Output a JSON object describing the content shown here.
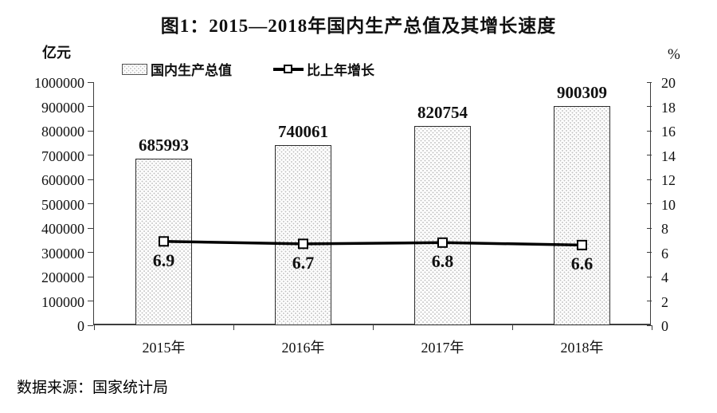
{
  "title": "图1：2015—2018年国内生产总值及其增长速度",
  "left_axis_unit": "亿元",
  "right_axis_unit": "%",
  "legend": [
    {
      "label": "国内生产总值",
      "swatch": "hatched-bar"
    },
    {
      "label": "比上年增长",
      "swatch": "line-with-square-marker"
    }
  ],
  "source": "数据来源：国家统计局",
  "chart_data": {
    "type": "bar",
    "subtype": "bar+line combo, dual axis",
    "categories": [
      "2015年",
      "2016年",
      "2017年",
      "2018年"
    ],
    "series": [
      {
        "name": "国内生产总值",
        "type": "bar",
        "axis": "left",
        "values": [
          685993,
          740061,
          820754,
          900309
        ],
        "labels": [
          "685993",
          "740061",
          "820754",
          "900309"
        ]
      },
      {
        "name": "比上年增长",
        "type": "line",
        "axis": "right",
        "values": [
          6.9,
          6.7,
          6.8,
          6.6
        ],
        "labels": [
          "6.9",
          "6.7",
          "6.8",
          "6.6"
        ]
      }
    ],
    "left_axis": {
      "min": 0,
      "max": 1000000,
      "step": 100000,
      "tick_labels": [
        "0",
        "100000",
        "200000",
        "300000",
        "400000",
        "500000",
        "600000",
        "700000",
        "800000",
        "900000",
        "1000000"
      ]
    },
    "right_axis": {
      "min": 0,
      "max": 20,
      "step": 2,
      "tick_labels": [
        "0",
        "2",
        "4",
        "6",
        "8",
        "10",
        "12",
        "14",
        "16",
        "18",
        "20"
      ]
    },
    "grid": false,
    "legend_position": "top",
    "colors": {
      "bar_fill": "#ffffff",
      "bar_dots": "#c4c4c4",
      "bar_border": "#2e2e2e",
      "line": "#000000",
      "marker_fill": "#ffffff",
      "marker_border": "#000000",
      "axis": "#3d3d3d",
      "text": "#111111"
    }
  }
}
